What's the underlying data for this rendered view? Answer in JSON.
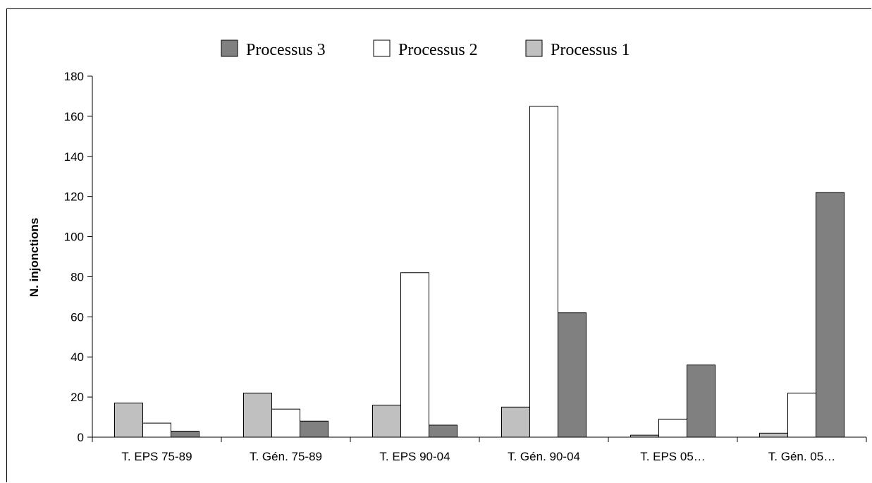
{
  "chart_data": {
    "type": "bar",
    "title": "",
    "xlabel": "",
    "ylabel": "N. injonctions",
    "ylim": [
      0,
      180
    ],
    "yticks": [
      0,
      20,
      40,
      60,
      80,
      100,
      120,
      140,
      160,
      180
    ],
    "grid": false,
    "legend_position": "top",
    "categories": [
      "T. EPS 75-89",
      "T. Gén. 75-89",
      "T. EPS 90-04",
      "T. Gén. 90-04",
      "T. EPS 05…",
      "T. Gén. 05…"
    ],
    "series": [
      {
        "name": "Processus 1",
        "color": "#c0c0c0",
        "values": [
          17,
          22,
          16,
          15,
          1,
          2
        ]
      },
      {
        "name": "Processus 2",
        "color": "#ffffff",
        "values": [
          7,
          14,
          82,
          165,
          9,
          22
        ]
      },
      {
        "name": "Processus 3",
        "color": "#808080",
        "values": [
          3,
          8,
          6,
          62,
          36,
          122
        ]
      }
    ],
    "legend_order": [
      "Processus 3",
      "Processus 2",
      "Processus 1"
    ]
  }
}
